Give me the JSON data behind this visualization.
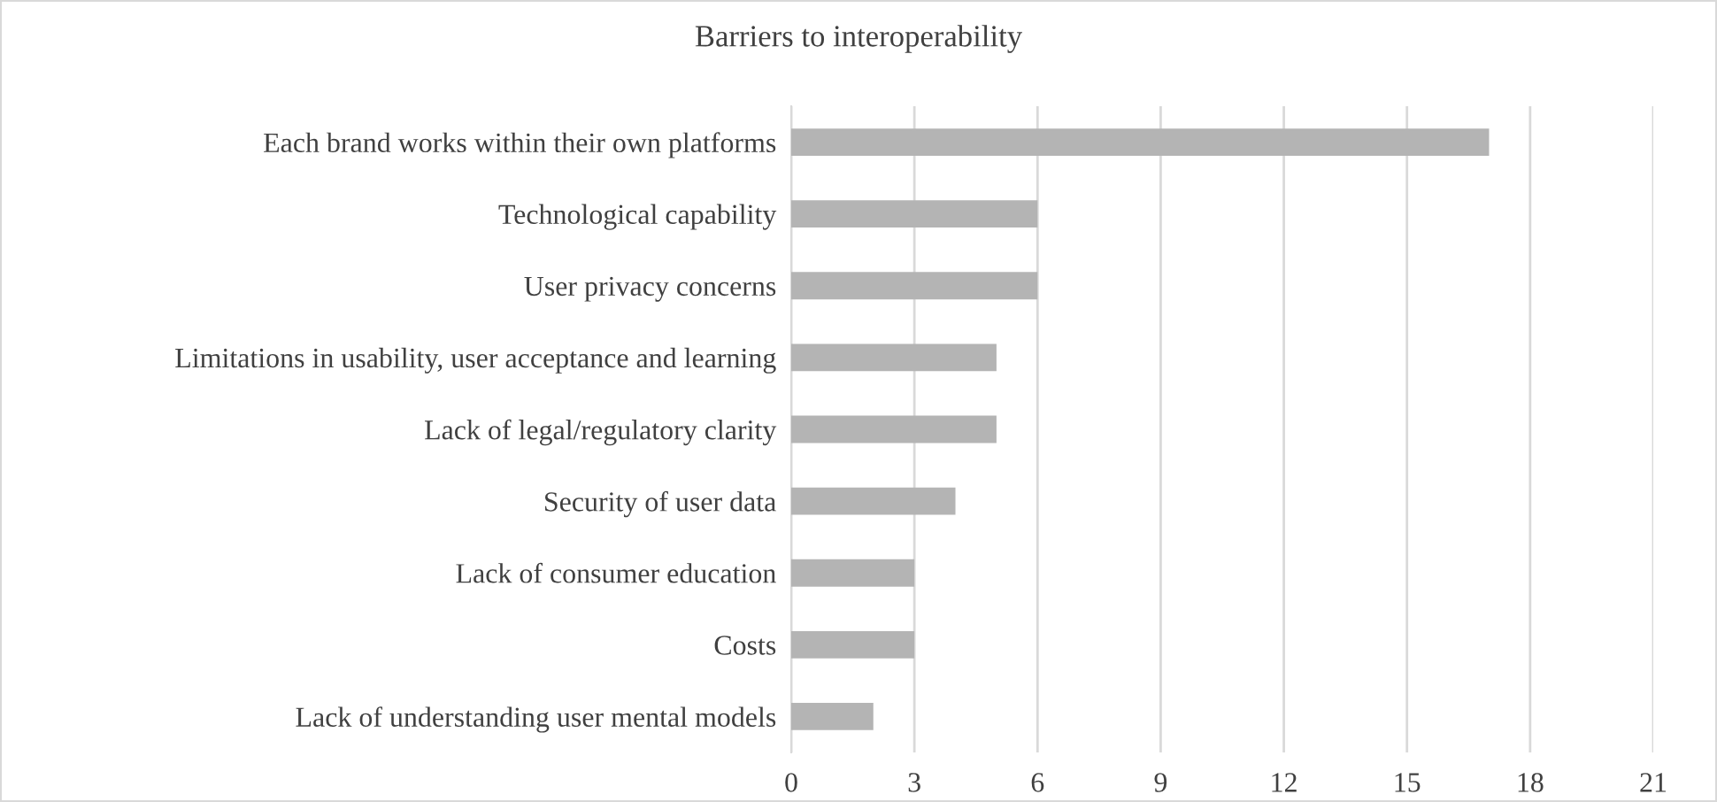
{
  "chart_data": {
    "type": "bar",
    "orientation": "horizontal",
    "title": "Barriers to interoperability",
    "categories": [
      "Each brand works within their own platforms",
      "Technological capability",
      "User privacy concerns",
      "Limitations in usability, user acceptance and learning",
      "Lack of legal/regulatory clarity",
      "Security of user data",
      "Lack of consumer education",
      "Costs",
      "Lack of understanding user mental models"
    ],
    "values": [
      17,
      6,
      6,
      5,
      5,
      4,
      3,
      3,
      2
    ],
    "color": "#b4b4b4",
    "xlim": [
      0,
      21
    ],
    "xticks": [
      0,
      3,
      6,
      9,
      12,
      15,
      18,
      21
    ],
    "grid": "x"
  }
}
